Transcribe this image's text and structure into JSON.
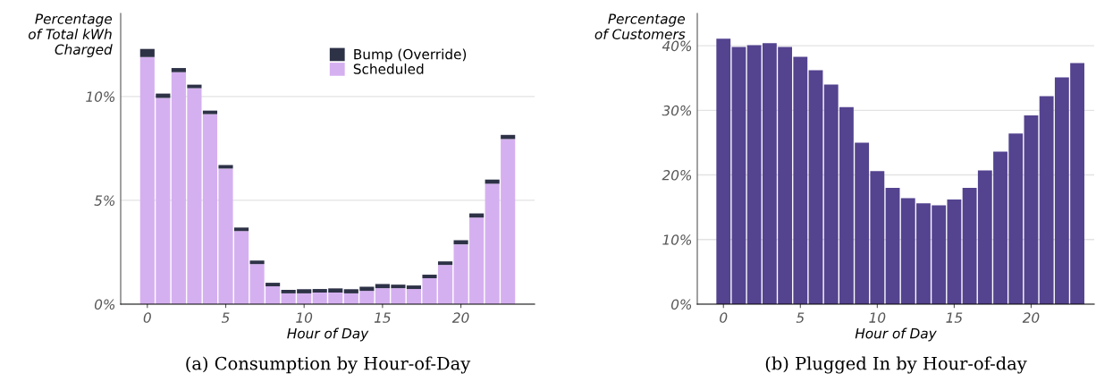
{
  "chart_data": [
    {
      "type": "bar",
      "stacked": true,
      "ylabel": "Percentage\nof Total kWh\nCharged",
      "xlabel": "Hour of Day",
      "annotations": [
        "(a) Consumption by Hour-of-Day"
      ],
      "x": [
        0,
        1,
        2,
        3,
        4,
        5,
        6,
        7,
        8,
        9,
        10,
        11,
        12,
        13,
        14,
        15,
        16,
        17,
        18,
        19,
        20,
        21,
        22,
        23
      ],
      "series": [
        {
          "name": "Scheduled",
          "color": "#d5b0f0",
          "values": [
            11.9,
            9.93,
            11.17,
            10.4,
            9.15,
            6.53,
            3.52,
            1.93,
            0.86,
            0.52,
            0.52,
            0.56,
            0.56,
            0.52,
            0.64,
            0.77,
            0.77,
            0.73,
            1.25,
            1.89,
            2.88,
            4.17,
            5.8,
            7.95
          ]
        },
        {
          "name": "Bump (Override)",
          "color": "#2e3247",
          "values": [
            0.39,
            0.21,
            0.2,
            0.17,
            0.17,
            0.17,
            0.17,
            0.17,
            0.17,
            0.17,
            0.2,
            0.17,
            0.2,
            0.2,
            0.2,
            0.2,
            0.17,
            0.17,
            0.17,
            0.17,
            0.2,
            0.2,
            0.2,
            0.2
          ]
        }
      ],
      "xlim": [
        -1.7,
        24.7
      ],
      "xticks": [
        0,
        5,
        10,
        15,
        20
      ],
      "ylim": [
        0,
        14
      ],
      "yticks": [
        {
          "value": 0,
          "label": "0%"
        },
        {
          "value": 5,
          "label": "5%"
        },
        {
          "value": 10,
          "label": "10%"
        }
      ],
      "grid": "y",
      "legend": "top right"
    },
    {
      "type": "bar",
      "ylabel": "Percentage\nof Customers",
      "xlabel": "Hour of Day",
      "annotations": [
        "(b) Plugged In by Hour-of-day"
      ],
      "x": [
        0,
        1,
        2,
        3,
        4,
        5,
        6,
        7,
        8,
        9,
        10,
        11,
        12,
        13,
        14,
        15,
        16,
        17,
        18,
        19,
        20,
        21,
        22,
        23
      ],
      "series": [
        {
          "color": "#54438f",
          "values": [
            41.1,
            39.8,
            40.1,
            40.4,
            39.8,
            38.3,
            36.2,
            34.0,
            30.5,
            25.0,
            20.6,
            18.0,
            16.4,
            15.6,
            15.3,
            16.2,
            18.0,
            20.7,
            23.6,
            26.4,
            29.2,
            32.2,
            35.1,
            37.3
          ]
        }
      ],
      "xlim": [
        -1.7,
        24.1
      ],
      "xticks": [
        0,
        5,
        10,
        15,
        20
      ],
      "ylim": [
        0,
        45
      ],
      "yticks": [
        {
          "value": 0,
          "label": "0%"
        },
        {
          "value": 10,
          "label": "10%"
        },
        {
          "value": 20,
          "label": "20%"
        },
        {
          "value": 30,
          "label": "30%"
        },
        {
          "value": 40,
          "label": "40%"
        }
      ],
      "grid": "y"
    }
  ]
}
